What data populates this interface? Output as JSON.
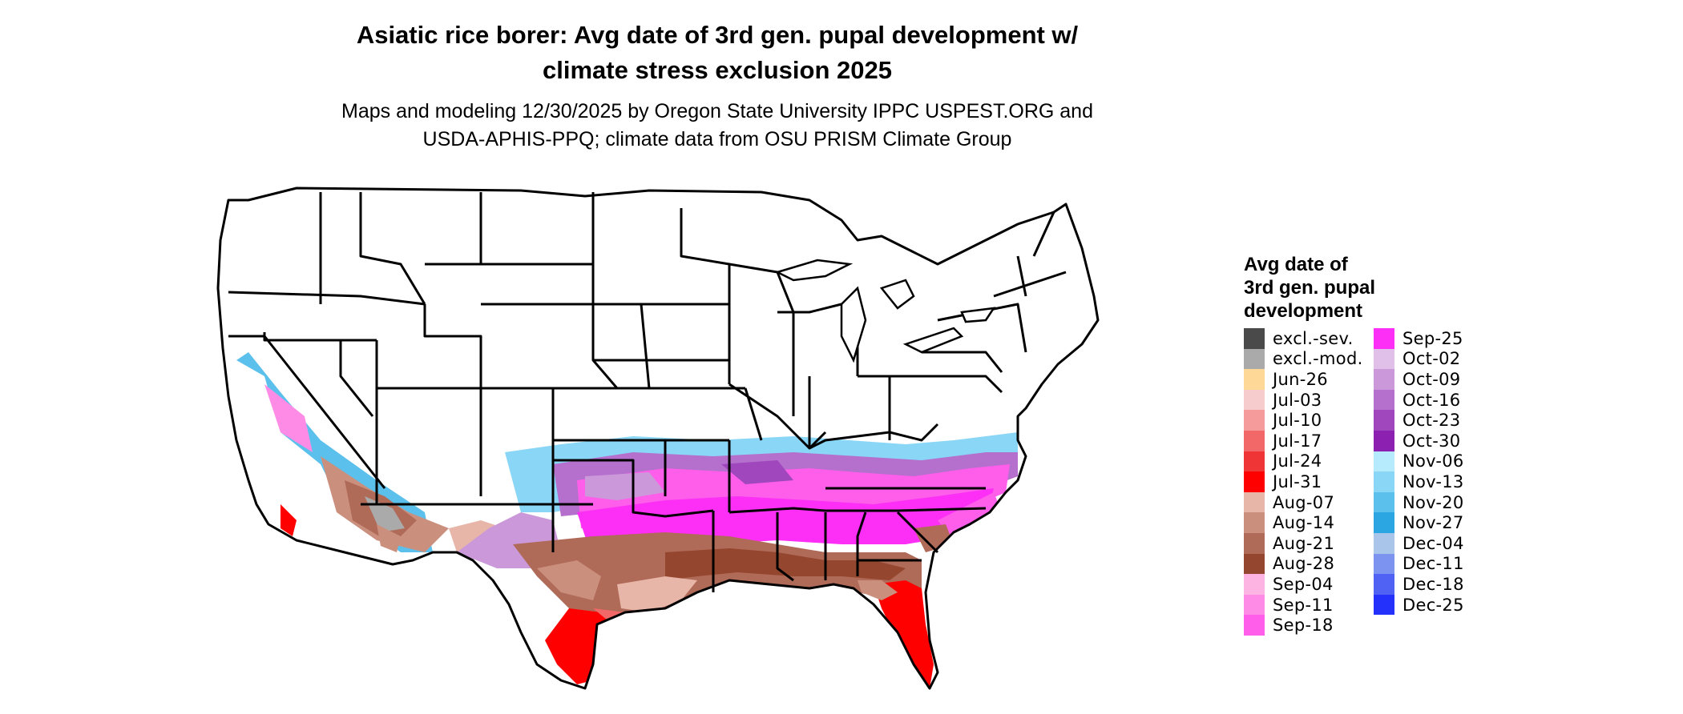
{
  "title": {
    "line1": "Asiatic rice borer: Avg date of 3rd gen. pupal development w/",
    "line2": "climate stress exclusion 2025"
  },
  "subtitle": {
    "line1": "Maps and modeling 12/30/2025 by Oregon State University IPPC USPEST.ORG and",
    "line2": "USDA-APHIS-PPQ; climate data from OSU PRISM Climate Group"
  },
  "legend": {
    "title_lines": [
      "Avg date of",
      "3rd gen. pupal",
      "development"
    ],
    "column1": [
      {
        "label": "excl.-sev.",
        "color": "#4a4a4a"
      },
      {
        "label": "excl.-mod.",
        "color": "#aaaaaa"
      },
      {
        "label": "Jun-26",
        "color": "#fdd896"
      },
      {
        "label": "Jul-03",
        "color": "#f6cccc"
      },
      {
        "label": "Jul-10",
        "color": "#f59b9b"
      },
      {
        "label": "Jul-17",
        "color": "#f26868"
      },
      {
        "label": "Jul-24",
        "color": "#ef3535"
      },
      {
        "label": "Jul-31",
        "color": "#fe0000"
      },
      {
        "label": "Aug-07",
        "color": "#e7b6a8"
      },
      {
        "label": "Aug-14",
        "color": "#cb8f7e"
      },
      {
        "label": "Aug-21",
        "color": "#b06a58"
      },
      {
        "label": "Aug-28",
        "color": "#95462f"
      },
      {
        "label": "Sep-04",
        "color": "#feb4e3"
      },
      {
        "label": "Sep-11",
        "color": "#fe8ce7"
      },
      {
        "label": "Sep-18",
        "color": "#fe5eea"
      }
    ],
    "column2": [
      {
        "label": "Sep-25",
        "color": "#fd2ef5"
      },
      {
        "label": "Oct-02",
        "color": "#e0bfe8"
      },
      {
        "label": "Oct-09",
        "color": "#cb98da"
      },
      {
        "label": "Oct-16",
        "color": "#b56fcc"
      },
      {
        "label": "Oct-23",
        "color": "#a047be"
      },
      {
        "label": "Oct-30",
        "color": "#8b20b1"
      },
      {
        "label": "Nov-06",
        "color": "#b5ebfd"
      },
      {
        "label": "Nov-13",
        "color": "#8ad6f6"
      },
      {
        "label": "Nov-20",
        "color": "#5cc0ec"
      },
      {
        "label": "Nov-27",
        "color": "#2ba6e2"
      },
      {
        "label": "Dec-04",
        "color": "#a9c5ea"
      },
      {
        "label": "Dec-11",
        "color": "#7c93ef"
      },
      {
        "label": "Dec-18",
        "color": "#4f62f4"
      },
      {
        "label": "Dec-25",
        "color": "#2331fb"
      }
    ]
  },
  "map": {
    "region": "Contiguous United States",
    "state_border_color": "#000000",
    "excluded_area_color": "#ffffff"
  }
}
